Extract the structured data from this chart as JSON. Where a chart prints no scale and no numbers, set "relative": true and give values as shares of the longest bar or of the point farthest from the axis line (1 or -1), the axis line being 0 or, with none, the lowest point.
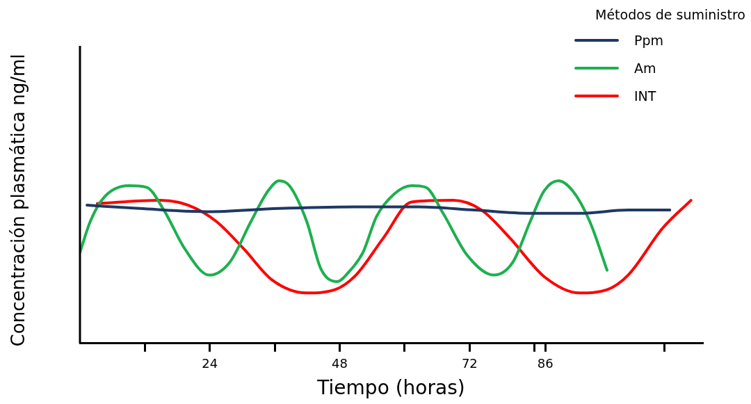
{
  "chart_data": {
    "type": "line",
    "xlabel": "Tiempo (horas)",
    "ylabel": "Concentración plasmática ng/ml",
    "legend_title": "Métodos de suministro",
    "legend": "top right",
    "relative": true,
    "grid": false,
    "marker": "none",
    "line_style": "solid",
    "xlim": [
      0,
      115
    ],
    "xticks": [
      {
        "value": 12,
        "label": null
      },
      24,
      {
        "value": 36,
        "label": null
      },
      48,
      {
        "value": 60,
        "label": null
      },
      72,
      {
        "value": 84,
        "label": null
      },
      86,
      {
        "value": 108,
        "label": null
      }
    ],
    "series": [
      {
        "name": "Ppm",
        "color": "#1f3864",
        "x": [
          1.3,
          11,
          23.4,
          36.8,
          52.3,
          62.6,
          72.9,
          83.2,
          92.3,
          101.3,
          109
        ],
        "values": [
          0.85,
          0.83,
          0.81,
          0.83,
          0.84,
          0.84,
          0.82,
          0.8,
          0.8,
          0.82,
          0.82
        ]
      },
      {
        "name": "Am",
        "color": "#1db04f",
        "x": [
          0,
          1.9,
          4.5,
          9,
          12.3,
          15.5,
          19.4,
          23.9,
          27.7,
          31.6,
          34.8,
          36.8,
          38.7,
          41.9,
          44.5,
          47.5,
          49.7,
          52.3,
          54.8,
          58.1,
          61.3,
          63.9,
          67.1,
          71.6,
          76.5,
          80,
          83.2,
          85.8,
          88.4,
          91,
          94.2,
          97.4
        ],
        "values": [
          0.56,
          0.75,
          0.9,
          0.97,
          0.96,
          0.82,
          0.58,
          0.42,
          0.5,
          0.75,
          0.94,
          1,
          0.97,
          0.75,
          0.46,
          0.38,
          0.44,
          0.56,
          0.78,
          0.92,
          0.97,
          0.96,
          0.8,
          0.54,
          0.42,
          0.5,
          0.75,
          0.94,
          1,
          0.94,
          0.75,
          0.45
        ]
      },
      {
        "name": "INT",
        "color": "#ff0000",
        "x": [
          3.2,
          14.8,
          20,
          25.2,
          30.3,
          35.5,
          41.9,
          47.1,
          51,
          56.1,
          61.3,
          69,
          74.2,
          79.4,
          85.8,
          92.3,
          97.4,
          101.3,
          107.7,
          112.9
        ],
        "values": [
          0.86,
          0.88,
          0.85,
          0.75,
          0.58,
          0.39,
          0.31,
          0.33,
          0.42,
          0.65,
          0.87,
          0.88,
          0.82,
          0.65,
          0.41,
          0.31,
          0.33,
          0.42,
          0.71,
          0.88
        ]
      }
    ]
  }
}
